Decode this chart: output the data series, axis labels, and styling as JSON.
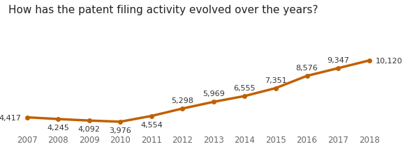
{
  "title": "How has the patent filing activity evolved over the years?",
  "years": [
    2007,
    2008,
    2009,
    2010,
    2011,
    2012,
    2013,
    2014,
    2015,
    2016,
    2017,
    2018
  ],
  "values": [
    4417,
    4245,
    4092,
    3976,
    4554,
    5298,
    5969,
    6555,
    7351,
    8576,
    9347,
    10120
  ],
  "labels": [
    "4,417",
    "4,245",
    "4,092",
    "3,976",
    "4,554",
    "5,298",
    "5,969",
    "6,555",
    "7,351",
    "8,576",
    "9,347",
    "10,120"
  ],
  "label_positions": [
    {
      "ha": "right",
      "va": "center",
      "xoff": -6,
      "yoff": 0
    },
    {
      "ha": "center",
      "va": "top",
      "xoff": 0,
      "yoff": -5
    },
    {
      "ha": "center",
      "va": "top",
      "xoff": 0,
      "yoff": -5
    },
    {
      "ha": "center",
      "va": "top",
      "xoff": 0,
      "yoff": -5
    },
    {
      "ha": "center",
      "va": "top",
      "xoff": 0,
      "yoff": -5
    },
    {
      "ha": "center",
      "va": "bottom",
      "xoff": 0,
      "yoff": 5
    },
    {
      "ha": "center",
      "va": "bottom",
      "xoff": 0,
      "yoff": 5
    },
    {
      "ha": "center",
      "va": "bottom",
      "xoff": 0,
      "yoff": 5
    },
    {
      "ha": "center",
      "va": "bottom",
      "xoff": 0,
      "yoff": 5
    },
    {
      "ha": "center",
      "va": "bottom",
      "xoff": 0,
      "yoff": 5
    },
    {
      "ha": "center",
      "va": "bottom",
      "xoff": 0,
      "yoff": 5
    },
    {
      "ha": "left",
      "va": "center",
      "xoff": 7,
      "yoff": 0
    }
  ],
  "line_color": "#c06000",
  "marker_color": "#c06000",
  "background_color": "#ffffff",
  "grid_color": "#e0e0e0",
  "title_fontsize": 11,
  "label_fontsize": 8,
  "tick_fontsize": 8.5,
  "ylim": [
    3200,
    11800
  ],
  "xlim_left": 2006.4,
  "xlim_right": 2019.2
}
